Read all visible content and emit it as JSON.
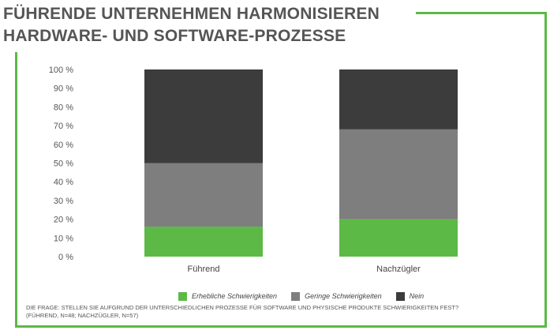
{
  "title": {
    "line1": "FÜHRENDE UNTERNEHMEN HARMONISIEREN",
    "line2": "HARDWARE- UND SOFTWARE-PROZESSE"
  },
  "chart_data": {
    "type": "bar",
    "stacked": true,
    "categories": [
      "Führend",
      "Nachzügler"
    ],
    "series": [
      {
        "name": "Erhebliche Schwierigkeiten",
        "values": [
          16,
          20
        ],
        "color": "#5cb946"
      },
      {
        "name": "Geringe Schwierigkeiten",
        "values": [
          34,
          48
        ],
        "color": "#7e7e7e"
      },
      {
        "name": "Nein",
        "values": [
          50,
          32
        ],
        "color": "#3c3c3c"
      }
    ],
    "ylim": [
      0,
      100
    ],
    "yticks": [
      "0 %",
      "10 %",
      "20 %",
      "30 %",
      "40 %",
      "50 %",
      "60 %",
      "70 %",
      "80 %",
      "90 %",
      "100 %"
    ],
    "grid": false,
    "legend_position": "bottom"
  },
  "footnote": {
    "line1": "DIE FRAGE: STELLEN SIE AUFGRUND DER UNTERSCHIEDLICHEN PROZESSE FÜR SOFTWARE UND PHYSISCHE PRODUKTE SCHWIERIGKEITEN FEST?",
    "line2": "(FÜHREND, N=48; NACHZÜGLER, N=57)"
  }
}
